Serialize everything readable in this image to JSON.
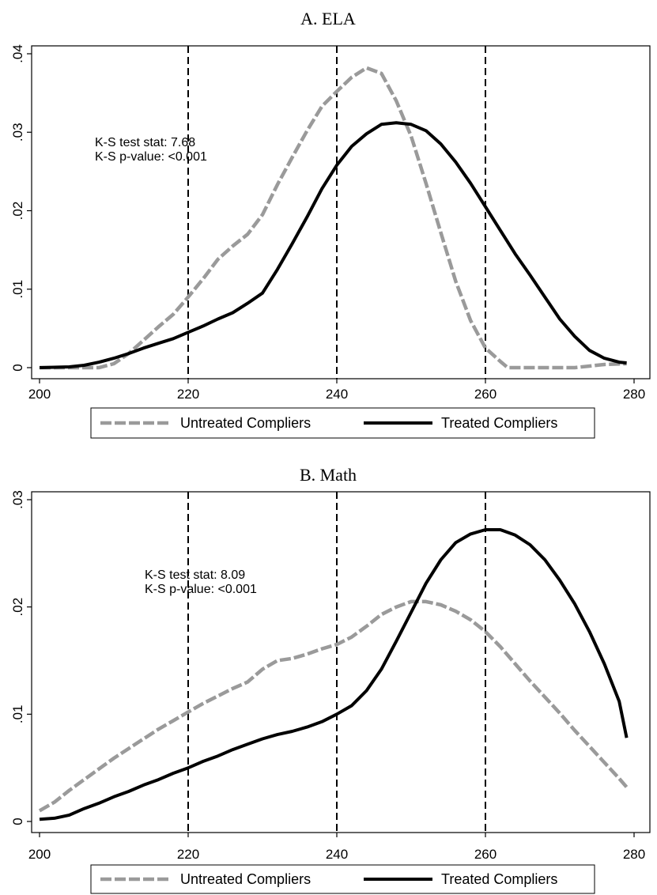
{
  "chart_data": [
    {
      "type": "line",
      "title": "A. ELA",
      "xlim": [
        200,
        280
      ],
      "ylim": [
        0,
        0.04
      ],
      "xticks": [
        200,
        220,
        240,
        260,
        280
      ],
      "xtick_labels": [
        "200",
        "220",
        "240",
        "260",
        "280"
      ],
      "yticks": [
        0,
        0.01,
        0.02,
        0.03,
        0.04
      ],
      "ytick_labels": [
        "0",
        ".01",
        ".02",
        ".03",
        ".04"
      ],
      "vlines": [
        220,
        240,
        260
      ],
      "annotation": [
        "K-S test stat: 7.68",
        "K-S p-value: <0.001"
      ],
      "legend_position": "bottom",
      "series": [
        {
          "name": "Untreated Compliers",
          "color": "#9a9a9a",
          "dash": true,
          "x": [
            200,
            204,
            208,
            210,
            212,
            214,
            216,
            218,
            220,
            222,
            224,
            226,
            228,
            230,
            232,
            234,
            236,
            238,
            240,
            242,
            244,
            246,
            248,
            250,
            252,
            254,
            256,
            258,
            260,
            262,
            263,
            266,
            270,
            272,
            276,
            279
          ],
          "y": [
            0,
            0,
            0,
            0.0005,
            0.0018,
            0.0035,
            0.0052,
            0.0068,
            0.009,
            0.0113,
            0.0138,
            0.0155,
            0.017,
            0.0195,
            0.0233,
            0.0268,
            0.0302,
            0.0333,
            0.0352,
            0.037,
            0.0382,
            0.0375,
            0.034,
            0.0295,
            0.0235,
            0.0172,
            0.011,
            0.006,
            0.0025,
            0.0008,
            0,
            0,
            0,
            0,
            0.0004,
            0.0005
          ]
        },
        {
          "name": "Treated Compliers",
          "color": "#000000",
          "dash": false,
          "x": [
            200,
            204,
            206,
            208,
            210,
            212,
            214,
            216,
            218,
            220,
            222,
            224,
            226,
            228,
            230,
            232,
            234,
            236,
            238,
            240,
            242,
            244,
            246,
            248,
            250,
            252,
            254,
            256,
            258,
            260,
            262,
            264,
            266,
            268,
            270,
            272,
            274,
            276,
            278,
            279
          ],
          "y": [
            0,
            0.0001,
            0.0003,
            0.0007,
            0.0012,
            0.0018,
            0.0025,
            0.0031,
            0.0037,
            0.0045,
            0.0053,
            0.0062,
            0.007,
            0.0082,
            0.0095,
            0.0125,
            0.0158,
            0.0192,
            0.0228,
            0.0258,
            0.0282,
            0.0298,
            0.031,
            0.0312,
            0.031,
            0.0302,
            0.0285,
            0.0262,
            0.0235,
            0.0205,
            0.0175,
            0.0145,
            0.0118,
            0.009,
            0.0062,
            0.004,
            0.0022,
            0.0012,
            0.0007,
            0.0006
          ]
        }
      ]
    },
    {
      "type": "line",
      "title": "B. Math",
      "xlim": [
        200,
        280
      ],
      "ylim": [
        0,
        0.03
      ],
      "xticks": [
        200,
        220,
        240,
        260,
        280
      ],
      "xtick_labels": [
        "200",
        "220",
        "240",
        "260",
        "280"
      ],
      "yticks": [
        0,
        0.01,
        0.02,
        0.03
      ],
      "ytick_labels": [
        "0",
        ".01",
        ".02",
        ".03"
      ],
      "vlines": [
        220,
        240,
        260
      ],
      "annotation": [
        "K-S test stat: 8.09",
        "K-S p-value: <0.001"
      ],
      "legend_position": "bottom",
      "series": [
        {
          "name": "Untreated Compliers",
          "color": "#9a9a9a",
          "dash": true,
          "x": [
            200,
            202,
            204,
            206,
            208,
            210,
            212,
            214,
            216,
            218,
            220,
            222,
            224,
            226,
            228,
            230,
            232,
            234,
            236,
            238,
            240,
            242,
            244,
            246,
            248,
            250,
            252,
            254,
            256,
            258,
            260,
            262,
            264,
            266,
            268,
            270,
            272,
            274,
            276,
            278,
            279
          ],
          "y": [
            0.001,
            0.0018,
            0.0029,
            0.0039,
            0.0049,
            0.0059,
            0.0068,
            0.0077,
            0.0086,
            0.0094,
            0.0102,
            0.011,
            0.0117,
            0.0124,
            0.013,
            0.0142,
            0.015,
            0.0152,
            0.0156,
            0.0161,
            0.0165,
            0.0172,
            0.0182,
            0.0193,
            0.02,
            0.0205,
            0.0205,
            0.0202,
            0.0196,
            0.0188,
            0.0177,
            0.0163,
            0.0147,
            0.0131,
            0.0116,
            0.0101,
            0.0085,
            0.007,
            0.0055,
            0.004,
            0.0032
          ]
        },
        {
          "name": "Treated Compliers",
          "color": "#000000",
          "dash": false,
          "x": [
            200,
            202,
            204,
            206,
            208,
            210,
            212,
            214,
            216,
            218,
            220,
            222,
            224,
            226,
            228,
            230,
            232,
            234,
            236,
            238,
            240,
            242,
            244,
            246,
            248,
            250,
            252,
            254,
            256,
            258,
            260,
            262,
            264,
            266,
            268,
            270,
            272,
            274,
            276,
            278,
            279
          ],
          "y": [
            0.0002,
            0.0003,
            0.0006,
            0.0012,
            0.0017,
            0.0023,
            0.0028,
            0.0034,
            0.0039,
            0.0045,
            0.005,
            0.0056,
            0.0061,
            0.0067,
            0.0072,
            0.0077,
            0.0081,
            0.0084,
            0.0088,
            0.0093,
            0.01,
            0.0108,
            0.0122,
            0.0142,
            0.0168,
            0.0195,
            0.0222,
            0.0244,
            0.026,
            0.0268,
            0.0272,
            0.0272,
            0.0267,
            0.0258,
            0.0244,
            0.0225,
            0.0203,
            0.0177,
            0.0147,
            0.0112,
            0.0078
          ]
        }
      ]
    }
  ]
}
